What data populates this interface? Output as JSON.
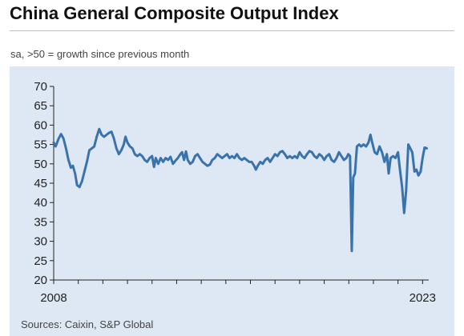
{
  "header": {
    "title": "China General Composite Output Index",
    "subtitle": "sa, >50 = growth since previous month"
  },
  "footer": {
    "source": "Sources: Caixin, S&P Global"
  },
  "colors": {
    "line": "#3a73ab",
    "panel": "#dde8f4",
    "axis": "#222222"
  },
  "chart_data": {
    "type": "line",
    "title": "China General Composite Output Index",
    "subtitle": "sa, >50 = growth since previous month",
    "xlabel": "",
    "ylabel": "",
    "ylim": [
      20,
      70
    ],
    "yticks": [
      20,
      25,
      30,
      35,
      40,
      45,
      50,
      55,
      60,
      65,
      70
    ],
    "xlim": [
      2008.0,
      2023.25
    ],
    "xtick_labels": [
      {
        "label": "2008",
        "x": 2008.0
      },
      {
        "label": "2023",
        "x": 2023.0
      }
    ],
    "grid": false,
    "legend": "none",
    "series": [
      {
        "points": [
          [
            2008.0,
            55.5
          ],
          [
            2008.08,
            54.5
          ],
          [
            2008.2,
            56.5
          ],
          [
            2008.3,
            57.7
          ],
          [
            2008.4,
            56.5
          ],
          [
            2008.5,
            54.0
          ],
          [
            2008.6,
            51.0
          ],
          [
            2008.7,
            49.0
          ],
          [
            2008.78,
            49.5
          ],
          [
            2008.87,
            47.5
          ],
          [
            2008.95,
            44.5
          ],
          [
            2009.05,
            44.0
          ],
          [
            2009.15,
            45.5
          ],
          [
            2009.25,
            48.0
          ],
          [
            2009.35,
            50.5
          ],
          [
            2009.45,
            53.5
          ],
          [
            2009.55,
            54.0
          ],
          [
            2009.65,
            54.5
          ],
          [
            2009.75,
            57.0
          ],
          [
            2009.85,
            59.0
          ],
          [
            2009.95,
            57.5
          ],
          [
            2010.05,
            57.0
          ],
          [
            2010.15,
            57.5
          ],
          [
            2010.25,
            58.0
          ],
          [
            2010.35,
            58.3
          ],
          [
            2010.45,
            56.5
          ],
          [
            2010.55,
            54.0
          ],
          [
            2010.65,
            52.5
          ],
          [
            2010.75,
            53.5
          ],
          [
            2010.85,
            55.0
          ],
          [
            2010.92,
            57.0
          ],
          [
            2011.0,
            55.5
          ],
          [
            2011.1,
            54.5
          ],
          [
            2011.2,
            54.0
          ],
          [
            2011.3,
            52.5
          ],
          [
            2011.4,
            52.0
          ],
          [
            2011.5,
            52.5
          ],
          [
            2011.6,
            52.0
          ],
          [
            2011.7,
            51.0
          ],
          [
            2011.8,
            50.5
          ],
          [
            2011.9,
            51.5
          ],
          [
            2012.0,
            52.0
          ],
          [
            2012.08,
            49.2
          ],
          [
            2012.15,
            51.5
          ],
          [
            2012.25,
            50.0
          ],
          [
            2012.35,
            51.5
          ],
          [
            2012.45,
            50.5
          ],
          [
            2012.55,
            51.5
          ],
          [
            2012.65,
            51.0
          ],
          [
            2012.75,
            51.8
          ],
          [
            2012.85,
            50.0
          ],
          [
            2012.95,
            50.8
          ],
          [
            2013.05,
            51.5
          ],
          [
            2013.15,
            52.5
          ],
          [
            2013.22,
            53.0
          ],
          [
            2013.3,
            51.0
          ],
          [
            2013.38,
            53.2
          ],
          [
            2013.45,
            51.0
          ],
          [
            2013.55,
            50.0
          ],
          [
            2013.65,
            50.5
          ],
          [
            2013.75,
            52.0
          ],
          [
            2013.85,
            52.5
          ],
          [
            2013.95,
            51.5
          ],
          [
            2014.05,
            50.5
          ],
          [
            2014.15,
            50.0
          ],
          [
            2014.25,
            49.5
          ],
          [
            2014.35,
            49.8
          ],
          [
            2014.45,
            51.0
          ],
          [
            2014.55,
            51.5
          ],
          [
            2014.65,
            52.5
          ],
          [
            2014.75,
            52.0
          ],
          [
            2014.85,
            51.5
          ],
          [
            2014.95,
            52.0
          ],
          [
            2015.05,
            52.5
          ],
          [
            2015.15,
            51.5
          ],
          [
            2015.25,
            52.0
          ],
          [
            2015.35,
            51.5
          ],
          [
            2015.45,
            52.5
          ],
          [
            2015.55,
            51.5
          ],
          [
            2015.65,
            51.0
          ],
          [
            2015.75,
            51.5
          ],
          [
            2015.85,
            51.0
          ],
          [
            2015.95,
            50.5
          ],
          [
            2016.05,
            50.5
          ],
          [
            2016.15,
            49.5
          ],
          [
            2016.22,
            48.5
          ],
          [
            2016.3,
            49.5
          ],
          [
            2016.4,
            50.5
          ],
          [
            2016.5,
            50.0
          ],
          [
            2016.6,
            51.0
          ],
          [
            2016.7,
            51.5
          ],
          [
            2016.8,
            50.5
          ],
          [
            2016.9,
            51.5
          ],
          [
            2017.0,
            52.5
          ],
          [
            2017.1,
            52.0
          ],
          [
            2017.2,
            53.0
          ],
          [
            2017.3,
            53.3
          ],
          [
            2017.4,
            52.5
          ],
          [
            2017.5,
            51.5
          ],
          [
            2017.6,
            52.0
          ],
          [
            2017.7,
            51.5
          ],
          [
            2017.8,
            52.0
          ],
          [
            2017.9,
            51.5
          ],
          [
            2018.0,
            53.0
          ],
          [
            2018.1,
            52.0
          ],
          [
            2018.2,
            51.5
          ],
          [
            2018.3,
            52.5
          ],
          [
            2018.4,
            53.3
          ],
          [
            2018.5,
            53.0
          ],
          [
            2018.6,
            52.0
          ],
          [
            2018.7,
            51.5
          ],
          [
            2018.8,
            52.5
          ],
          [
            2018.9,
            52.0
          ],
          [
            2019.0,
            51.0
          ],
          [
            2019.1,
            52.0
          ],
          [
            2019.2,
            52.5
          ],
          [
            2019.3,
            51.0
          ],
          [
            2019.4,
            50.5
          ],
          [
            2019.5,
            51.5
          ],
          [
            2019.6,
            53.0
          ],
          [
            2019.7,
            52.0
          ],
          [
            2019.8,
            51.0
          ],
          [
            2019.9,
            51.5
          ],
          [
            2019.98,
            52.5
          ],
          [
            2020.05,
            52.0
          ],
          [
            2020.12,
            27.5
          ],
          [
            2020.18,
            46.5
          ],
          [
            2020.25,
            47.5
          ],
          [
            2020.33,
            54.5
          ],
          [
            2020.42,
            55.0
          ],
          [
            2020.5,
            54.5
          ],
          [
            2020.6,
            55.0
          ],
          [
            2020.7,
            54.5
          ],
          [
            2020.8,
            55.5
          ],
          [
            2020.88,
            57.5
          ],
          [
            2020.95,
            55.5
          ],
          [
            2021.05,
            53.0
          ],
          [
            2021.15,
            52.5
          ],
          [
            2021.25,
            54.5
          ],
          [
            2021.35,
            53.0
          ],
          [
            2021.45,
            50.5
          ],
          [
            2021.55,
            52.5
          ],
          [
            2021.62,
            47.5
          ],
          [
            2021.7,
            51.5
          ],
          [
            2021.8,
            52.0
          ],
          [
            2021.9,
            51.5
          ],
          [
            2022.0,
            53.0
          ],
          [
            2022.08,
            48.5
          ],
          [
            2022.17,
            43.8
          ],
          [
            2022.25,
            37.3
          ],
          [
            2022.33,
            43.0
          ],
          [
            2022.42,
            55.0
          ],
          [
            2022.5,
            54.0
          ],
          [
            2022.58,
            53.0
          ],
          [
            2022.67,
            48.0
          ],
          [
            2022.75,
            48.5
          ],
          [
            2022.83,
            47.0
          ],
          [
            2022.92,
            48.0
          ],
          [
            2023.0,
            51.5
          ],
          [
            2023.08,
            54.2
          ],
          [
            2023.17,
            54.0
          ]
        ]
      }
    ]
  }
}
